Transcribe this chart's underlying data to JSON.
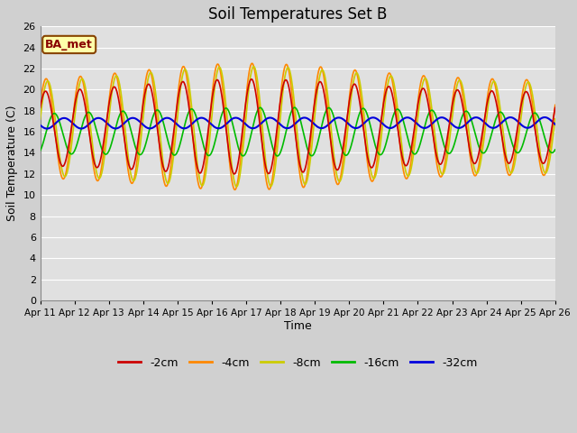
{
  "title": "Soil Temperatures Set B",
  "xlabel": "Time",
  "ylabel": "Soil Temperature (C)",
  "ylim": [
    0,
    26
  ],
  "yticks": [
    0,
    2,
    4,
    6,
    8,
    10,
    12,
    14,
    16,
    18,
    20,
    22,
    24,
    26
  ],
  "annotation": "BA_met",
  "fig_facecolor": "#d0d0d0",
  "plot_bg_color": "#e0e0e0",
  "legend_labels": [
    "-2cm",
    "-4cm",
    "-8cm",
    "-16cm",
    "-32cm"
  ],
  "legend_colors": [
    "#cc0000",
    "#ff8800",
    "#cccc00",
    "#00bb00",
    "#0000dd"
  ],
  "line_colors": [
    "#cc0000",
    "#ff8800",
    "#cccc00",
    "#00bb00",
    "#0000dd"
  ],
  "n_points": 1440,
  "grid_color": "#ffffff",
  "title_fontsize": 12,
  "annotation_facecolor": "#ffffaa",
  "annotation_edgecolor": "#884400",
  "annotation_textcolor": "#880000"
}
